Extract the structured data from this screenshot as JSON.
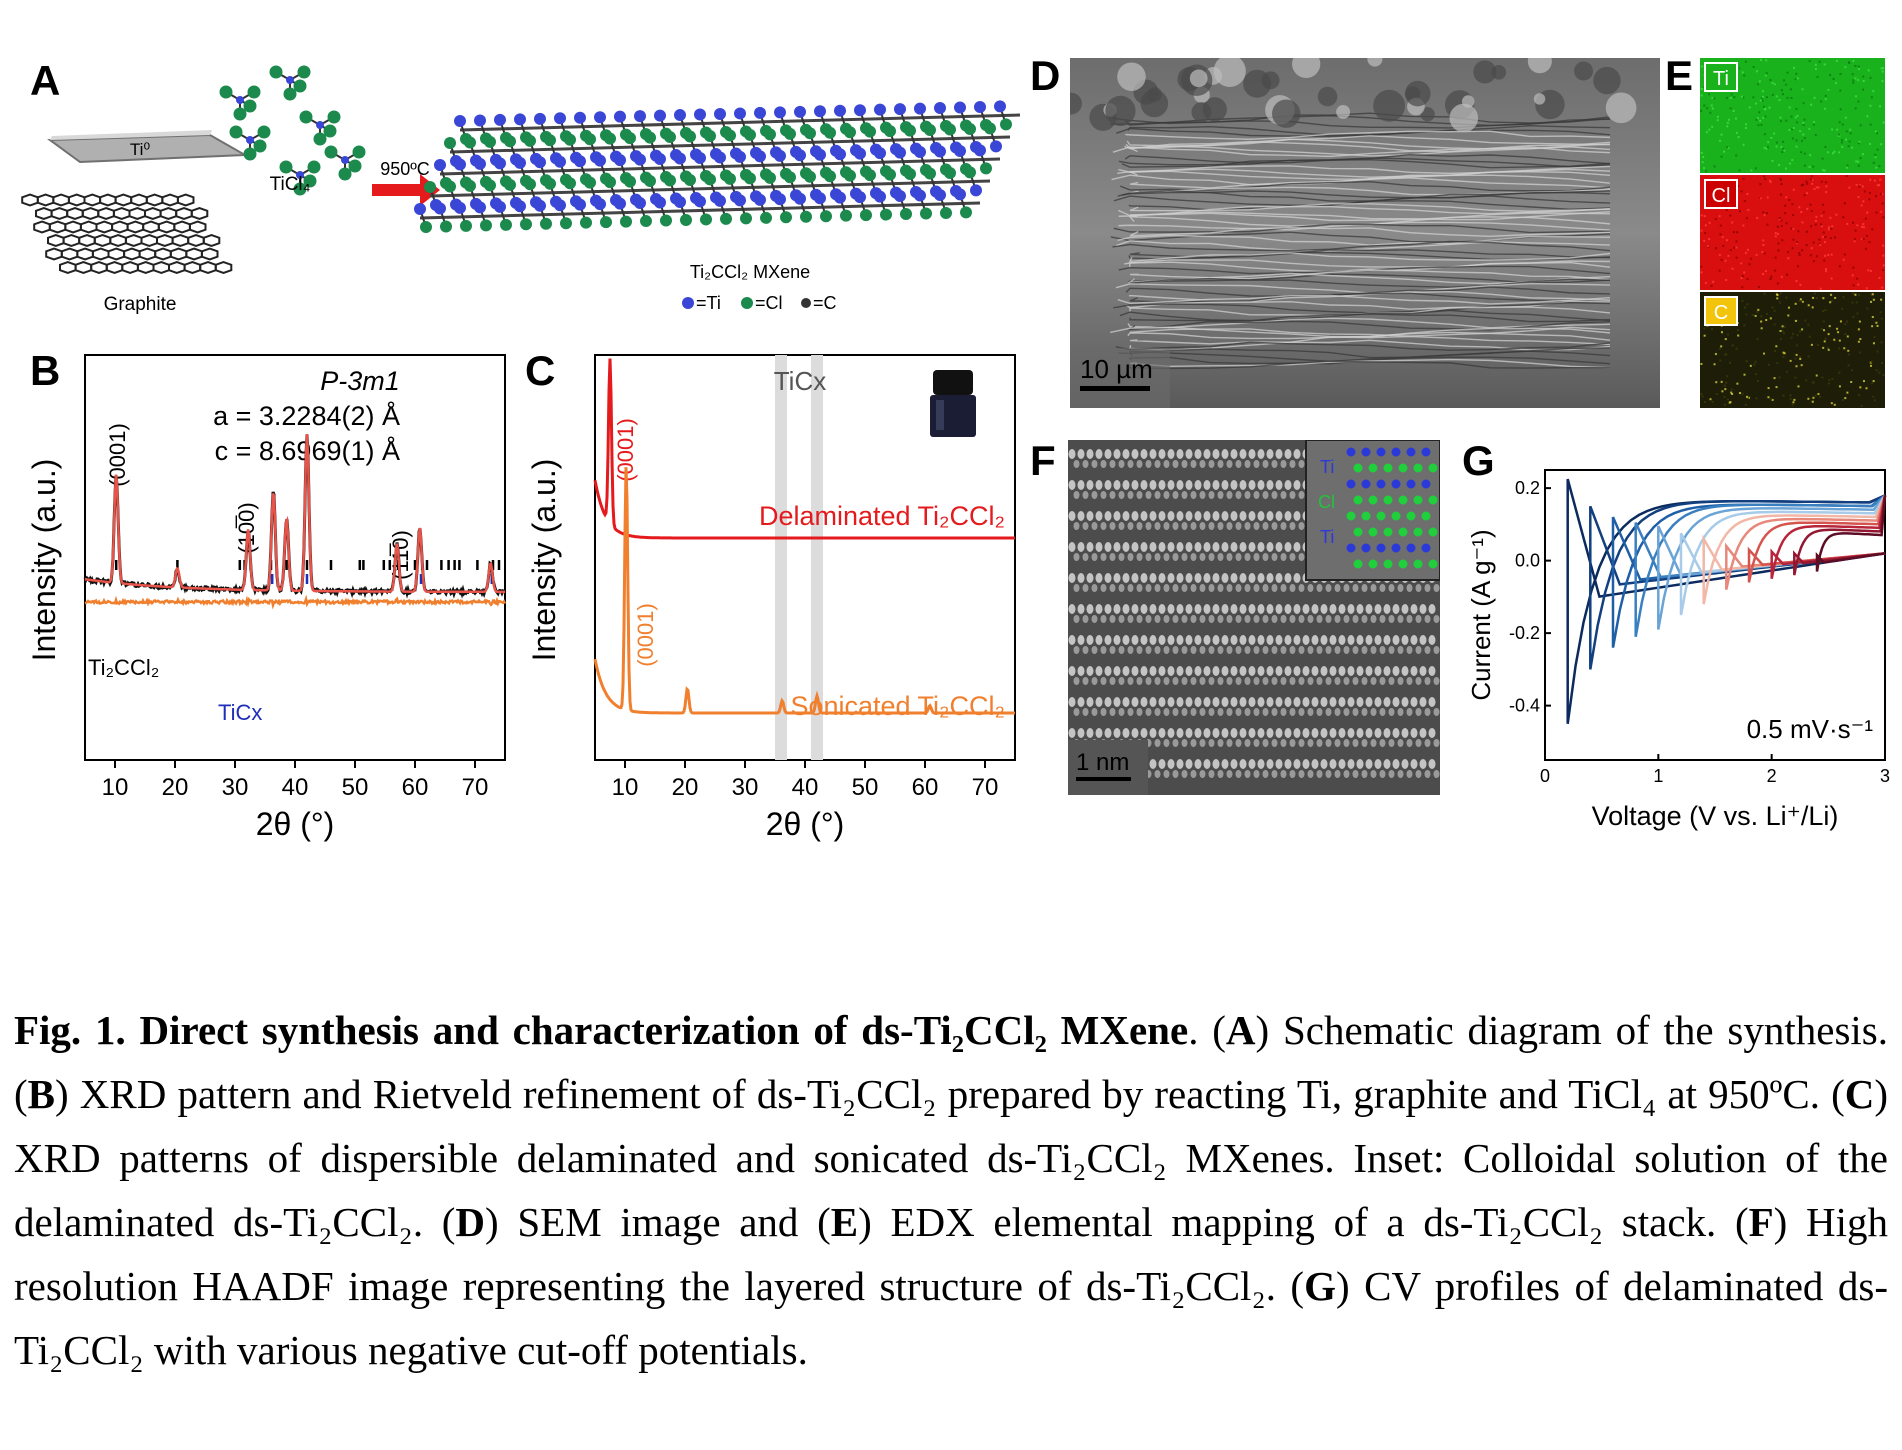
{
  "panels": {
    "A": {
      "label": "A",
      "ti0": "Ti⁰",
      "graphite": "Graphite",
      "ticl4": "TiCl₄",
      "temp": "950ºC",
      "product": "Ti₂CCl₂ MXene",
      "legend": "●=Ti  ●=Cl  ●=C",
      "legend_ti": "=Ti",
      "legend_cl": "=Cl",
      "legend_c": "=C"
    },
    "B": {
      "label": "B",
      "space_group": "P-3m1",
      "lattice_a": "a = 3.2284(2) Å",
      "lattice_c": "c = 8.6969(1) Å",
      "ylabel": "Intensity (a.u.)",
      "xlabel": "2θ (°)",
      "peak_0001": "(0001)",
      "peak_1010": "(10̅0)",
      "peak_1120": "(11̅0)",
      "phase_main": "Ti₂CCl₂",
      "phase_minor": "TiCx"
    },
    "C": {
      "label": "C",
      "ylabel": "Intensity (a.u.)",
      "xlabel": "2θ (°)",
      "ticx": "TiCx",
      "peak_0001_top": "(0001)",
      "peak_0001_bot": "(0001)",
      "series_delam": "Delaminated Ti₂CCl₂",
      "series_sonic": "Sonicated Ti₂CCl₂"
    },
    "D": {
      "label": "D",
      "scale": "10 µm"
    },
    "E": {
      "label": "E",
      "ti": "Ti",
      "cl": "Cl",
      "c": "C"
    },
    "F": {
      "label": "F",
      "scale": "1 nm",
      "inset_ti1": "Ti",
      "inset_cl": "Cl",
      "inset_ti2": "Ti"
    },
    "G": {
      "label": "G",
      "ylabel": "Current (A g⁻¹)",
      "xlabel": "Voltage (V vs. Li⁺/Li)",
      "rate": "0.5 mV·s⁻¹"
    }
  },
  "chart_data": [
    {
      "type": "line",
      "panel": "B",
      "xlabel": "2θ (°)",
      "ylabel": "Intensity (a.u.)",
      "xlim": [
        5,
        75
      ],
      "xticks": [
        10,
        20,
        30,
        40,
        50,
        60,
        70
      ],
      "peaks_2theta": [
        10.2,
        20.4,
        32.2,
        36.4,
        38.6,
        42.0,
        57.0,
        60.8,
        72.6
      ],
      "peak_heights_rel": [
        0.68,
        0.12,
        0.38,
        0.62,
        0.45,
        0.98,
        0.3,
        0.4,
        0.18
      ],
      "reflections_main": [
        10.2,
        20.4,
        30.8,
        31.6,
        32.6,
        36.0,
        38.6,
        42.0,
        46.0,
        50.8,
        51.4,
        54.8,
        55.8,
        57.2,
        60.0,
        61.2,
        62.0,
        64.4,
        65.6,
        66.6,
        67.4,
        70.4,
        73.0,
        74.0
      ],
      "reflections_minor": [
        36.2,
        42.0,
        61.0,
        72.8
      ]
    },
    {
      "type": "line",
      "panel": "C",
      "xlabel": "2θ (°)",
      "ylabel": "Intensity (a.u.)",
      "xlim": [
        5,
        75
      ],
      "xticks": [
        10,
        20,
        30,
        40,
        50,
        60,
        70
      ],
      "ticx_bands_2theta": [
        36.0,
        42.0
      ],
      "series": [
        {
          "name": "Delaminated Ti₂CCl₂",
          "color": "#e41a1c",
          "peak_2theta": [
            7.5
          ],
          "peak_rel": [
            1.0
          ]
        },
        {
          "name": "Sonicated Ti₂CCl₂",
          "color": "#f07f2e",
          "peak_2theta": [
            10.2,
            20.4,
            36.2,
            42.0,
            60.8
          ],
          "peak_rel": [
            1.0,
            0.1,
            0.05,
            0.07,
            0.03
          ]
        }
      ]
    },
    {
      "type": "line",
      "panel": "G",
      "xlabel": "Voltage (V vs. Li⁺/Li)",
      "ylabel": "Current (A g⁻¹)",
      "xlim": [
        0,
        3
      ],
      "ylim": [
        -0.55,
        0.25
      ],
      "xticks": [
        0,
        1,
        2,
        3
      ],
      "yticks": [
        0.2,
        0.0,
        -0.2,
        -0.4
      ],
      "cutoff_voltages": [
        0.2,
        0.4,
        0.6,
        0.8,
        1.0,
        1.2,
        1.4,
        1.6,
        1.8,
        2.0,
        2.2,
        2.4
      ],
      "min_currents": [
        -0.45,
        -0.3,
        -0.24,
        -0.21,
        -0.19,
        -0.15,
        -0.12,
        -0.08,
        -0.06,
        -0.05,
        -0.04,
        -0.03
      ],
      "max_currents": [
        0.17,
        0.17,
        0.16,
        0.16,
        0.15,
        0.14,
        0.13,
        0.12,
        0.11,
        0.1,
        0.09,
        0.08
      ]
    }
  ],
  "caption": {
    "title": "Fig. 1. Direct synthesis and characterization of ds-Ti₂CCl₂ MXene",
    "a": "A",
    "a_text": " Schematic diagram of the synthesis. (",
    "b": "B",
    "b_text": ") XRD pattern and Rietveld refinement of ds-Ti₂CCl₂ prepared by reacting Ti, graphite and TiCl₄ at 950ºC. (",
    "c": "C",
    "c_text": ") XRD patterns of dispersible delaminated and sonicated ds-Ti₂CCl₂ MXenes. Inset: Colloidal solution of the delaminated ds-Ti₂CCl₂. (",
    "d": "D",
    "d_text": ") SEM image and (",
    "e": "E",
    "e_text": ") EDX elemental mapping of a ds-Ti₂CCl₂ stack. (",
    "f": "F",
    "f_text": ") High resolution HAADF image representing the layered structure of ds-Ti₂CCl₂. (",
    "g": "G",
    "g_text": ") CV profiles of delaminated ds-Ti₂CCl₂ with various negative cut-off potentials."
  }
}
